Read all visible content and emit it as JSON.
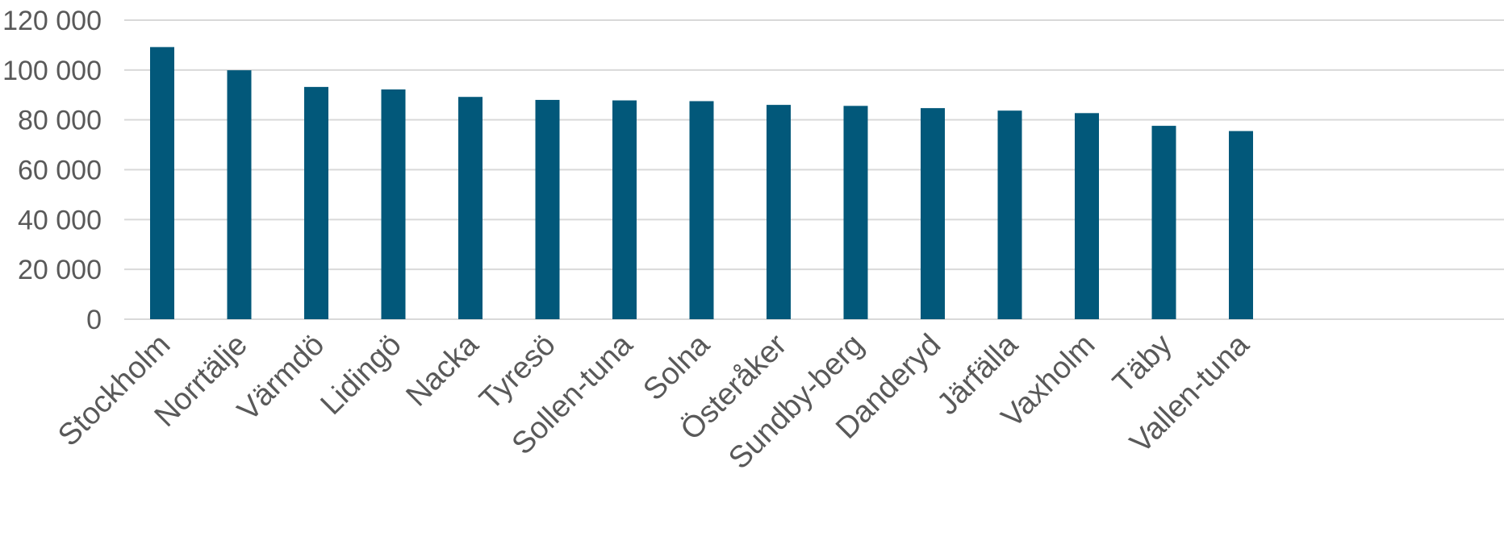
{
  "chart_data": {
    "type": "bar",
    "title": "",
    "xlabel": "",
    "ylabel": "",
    "categories": [
      "Stockholm",
      "Norrtälje",
      "Värmdö",
      "Lidingö",
      "Nacka",
      "Tyresö",
      "Sollen-tuna",
      "Solna",
      "Österåker",
      "Sundby-berg",
      "Danderyd",
      "Järfälla",
      "Vaxholm",
      "Täby",
      "Vallen-tuna"
    ],
    "values": [
      109200,
      99900,
      93200,
      92200,
      89200,
      88000,
      87800,
      87500,
      86000,
      85600,
      84700,
      83700,
      82700,
      77600,
      75500
    ],
    "ylim": [
      0,
      120000
    ],
    "yticks": [
      0,
      20000,
      40000,
      60000,
      80000,
      100000,
      120000
    ],
    "ytick_labels": [
      "0",
      "20 000",
      "40 000",
      "60 000",
      "80 000",
      "100 000",
      "120 000"
    ],
    "bar_color": "#02587a",
    "grid": true,
    "legend": "none"
  }
}
